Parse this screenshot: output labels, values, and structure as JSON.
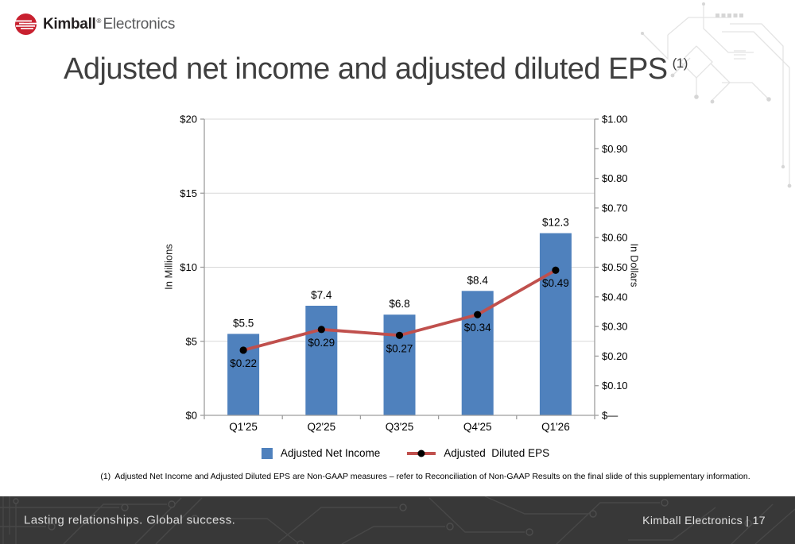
{
  "header": {
    "logo": {
      "icon": "kimball-globe-mark",
      "brand_bold": "Kimball",
      "brand_reg": "®",
      "brand_light": "Electronics"
    }
  },
  "title": {
    "text": "Adjusted net income and adjusted diluted EPS",
    "superscript": "(1)"
  },
  "chart_data": {
    "type": "bar",
    "subtype": "bar-and-line-dual-axis",
    "categories": [
      "Q1'25",
      "Q2'25",
      "Q3'25",
      "Q4'25",
      "Q1'26"
    ],
    "series": [
      {
        "name": "Adjusted Net Income",
        "type": "bar",
        "axis": "left",
        "values": [
          5.5,
          7.4,
          6.8,
          8.4,
          12.3
        ],
        "labels": [
          "$5.5",
          "$7.4",
          "$6.8",
          "$8.4",
          "$12.3"
        ],
        "color": "#4F81BD"
      },
      {
        "name": "Adjusted  Diluted EPS",
        "type": "line",
        "axis": "right",
        "values": [
          0.22,
          0.29,
          0.27,
          0.34,
          0.49
        ],
        "labels": [
          "$0.22",
          "$0.29",
          "$0.27",
          "$0.34",
          "$0.49"
        ],
        "color": "#C0504D",
        "marker_color": "#000000"
      }
    ],
    "left_axis": {
      "label": "In Millions",
      "min": 0,
      "max": 20,
      "ticks": [
        "$0",
        "$5",
        "$10",
        "$15",
        "$20"
      ]
    },
    "right_axis": {
      "label": "In Dollars",
      "min": 0,
      "max": 1.0,
      "ticks": [
        "$—",
        "$0.10",
        "$0.20",
        "$0.30",
        "$0.40",
        "$0.50",
        "$0.60",
        "$0.70",
        "$0.80",
        "$0.90",
        "$1.00"
      ]
    },
    "gridlines": true,
    "legend_position": "bottom"
  },
  "footnote": "(1)  Adjusted Net Income and Adjusted Diluted EPS are Non-GAAP measures – refer to Reconciliation of Non-GAAP Results on the final slide of this supplementary information.",
  "footer": {
    "tagline": "Lasting relationships. Global success.",
    "page_label": "Kimball Electronics | 17"
  },
  "colors": {
    "bar": "#4F81BD",
    "line": "#C0504D",
    "marker": "#000000",
    "brand_red": "#C8202F",
    "grid": "#D9D9D9",
    "axis": "#9E9E9E",
    "footer_bg": "#383838",
    "footer_trace": "#484848",
    "circuit_light": "#E4E4E4"
  }
}
